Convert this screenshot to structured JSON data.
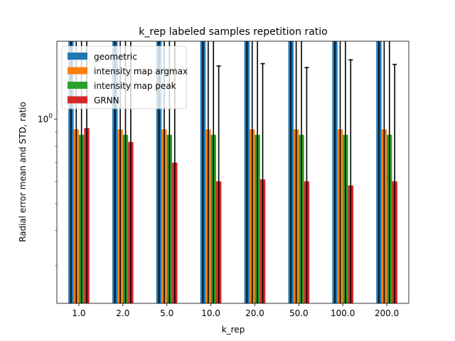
{
  "chart_data": {
    "type": "bar",
    "title": "k_rep labeled samples repetition ratio",
    "xlabel": "k_rep",
    "ylabel": "Radial error mean and STD, ratio",
    "y_scale": "log",
    "ylim": [
      0.22,
      1.9
    ],
    "y_major_ticks": [
      {
        "value": 1.0,
        "label": "10^0"
      }
    ],
    "legend_position": "upper-left",
    "categories": [
      "1.0",
      "2.0",
      "5.0",
      "10.0",
      "20.0",
      "50.0",
      "100.0",
      "200.0"
    ],
    "series": [
      {
        "name": "geometric",
        "color": "#1f77b4",
        "values": [
          2.2,
          2.2,
          2.2,
          2.2,
          2.2,
          2.2,
          2.2,
          2.2
        ],
        "error_top": [
          2.2,
          2.2,
          2.2,
          2.2,
          2.2,
          2.2,
          2.2,
          2.2
        ]
      },
      {
        "name": "intensity map argmax",
        "color": "#ff7f0e",
        "values": [
          0.92,
          0.92,
          0.92,
          0.92,
          0.92,
          0.92,
          0.92,
          0.92
        ],
        "error_top": [
          2.2,
          2.2,
          2.2,
          2.2,
          2.2,
          2.2,
          2.2,
          2.2
        ]
      },
      {
        "name": "intensity map peak",
        "color": "#2ca02c",
        "values": [
          0.88,
          0.88,
          0.88,
          0.88,
          0.88,
          0.88,
          0.88,
          0.88
        ],
        "error_top": [
          2.2,
          2.2,
          2.2,
          2.2,
          2.2,
          2.2,
          2.2,
          2.2
        ]
      },
      {
        "name": "GRNN",
        "color": "#d62728",
        "values": [
          0.93,
          0.83,
          0.7,
          0.6,
          0.61,
          0.6,
          0.58,
          0.6
        ],
        "error_top": [
          2.2,
          2.2,
          2.2,
          1.55,
          1.58,
          1.53,
          1.63,
          1.57
        ]
      }
    ]
  }
}
